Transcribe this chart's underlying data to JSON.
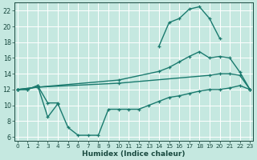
{
  "xlabel": "Humidex (Indice chaleur)",
  "x_ticks": [
    0,
    1,
    2,
    3,
    4,
    5,
    6,
    7,
    8,
    9,
    10,
    11,
    12,
    13,
    14,
    15,
    16,
    17,
    18,
    19,
    20,
    21,
    22,
    23
  ],
  "ylim": [
    5.5,
    23
  ],
  "xlim": [
    -0.3,
    23.3
  ],
  "yticks": [
    6,
    8,
    10,
    12,
    14,
    16,
    18,
    20,
    22
  ],
  "bg_color": "#c5e8e0",
  "grid_color": "#ffffff",
  "line_color": "#1a7a6e",
  "line1_x": [
    0,
    1,
    2,
    3,
    4,
    14,
    15,
    16,
    17,
    18,
    19,
    20
  ],
  "line1_y": [
    12.0,
    12.0,
    12.5,
    10.3,
    10.3,
    17.5,
    20.5,
    21.0,
    22.2,
    22.5,
    21.0,
    18.5
  ],
  "line2_x": [
    0,
    2,
    10,
    14,
    15,
    16,
    17,
    18,
    19,
    20,
    21,
    22,
    23
  ],
  "line2_y": [
    12.0,
    12.3,
    13.2,
    14.3,
    14.8,
    15.5,
    16.2,
    16.8,
    16.0,
    16.2,
    16.0,
    14.2,
    12.0
  ],
  "line3_x": [
    0,
    2,
    10,
    19,
    20,
    21,
    22,
    23
  ],
  "line3_y": [
    12.0,
    12.3,
    12.8,
    13.8,
    14.0,
    14.0,
    13.8,
    12.0
  ],
  "line4_x": [
    0,
    1,
    2,
    3,
    4,
    5,
    6,
    7,
    8,
    9,
    10,
    11,
    12,
    13,
    14,
    15,
    16,
    17,
    18,
    19,
    20,
    21,
    22,
    23
  ],
  "line4_y": [
    12.0,
    12.0,
    12.5,
    8.5,
    10.2,
    7.2,
    6.2,
    6.2,
    6.2,
    9.5,
    9.5,
    9.5,
    9.5,
    10.0,
    10.5,
    11.0,
    11.2,
    11.5,
    11.8,
    12.0,
    12.0,
    12.2,
    12.5,
    12.0
  ]
}
